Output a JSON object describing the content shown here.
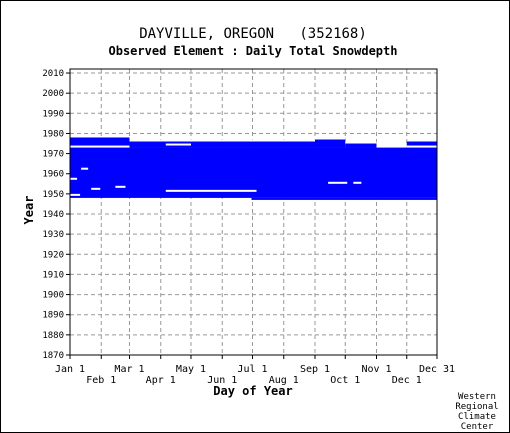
{
  "chart_data": {
    "type": "heatmap",
    "title": "DAYVILLE, OREGON   (352168)",
    "subtitle": "Observed Element : Daily Total Snowdepth",
    "xlabel": "Day of Year",
    "ylabel": "Year",
    "x_range": [
      1,
      365
    ],
    "ylim": [
      1870,
      2012
    ],
    "y_ticks": [
      2010,
      2000,
      1990,
      1980,
      1970,
      1960,
      1950,
      1940,
      1930,
      1920,
      1910,
      1900,
      1890,
      1880,
      1870
    ],
    "x_ticks_upper": [
      {
        "label": "Jan 1",
        "day": 1
      },
      {
        "label": "Mar 1",
        "day": 60
      },
      {
        "label": "May 1",
        "day": 121
      },
      {
        "label": "Jul 1",
        "day": 182
      },
      {
        "label": "Sep 1",
        "day": 244
      },
      {
        "label": "Nov 1",
        "day": 305
      },
      {
        "label": "Dec 31",
        "day": 365
      }
    ],
    "x_ticks_lower": [
      {
        "label": "Feb 1",
        "day": 32
      },
      {
        "label": "Apr 1",
        "day": 91
      },
      {
        "label": "Jun 1",
        "day": 152
      },
      {
        "label": "Aug 1",
        "day": 213
      },
      {
        "label": "Oct 1",
        "day": 274
      },
      {
        "label": "Dec 1",
        "day": 335
      }
    ],
    "data_color": "#0000ff",
    "grid": true,
    "data_blocks": [
      {
        "day_start": 1,
        "day_end": 365,
        "year_start": 1948,
        "year_end": 1973
      },
      {
        "day_start": 1,
        "day_end": 59,
        "year_start": 1973,
        "year_end": 1978
      },
      {
        "day_start": 60,
        "day_end": 243,
        "year_start": 1973,
        "year_end": 1976
      },
      {
        "day_start": 244,
        "day_end": 273,
        "year_start": 1973,
        "year_end": 1978
      },
      {
        "day_start": 274,
        "day_end": 304,
        "year_start": 1973,
        "year_end": 1976
      },
      {
        "day_start": 335,
        "day_end": 365,
        "year_start": 1973,
        "year_end": 1976
      },
      {
        "day_start": 181,
        "day_end": 365,
        "year_start": 1947,
        "year_end": 1948
      }
    ],
    "data_gaps": [
      {
        "day_start": 1,
        "day_end": 59,
        "year": 1973
      },
      {
        "day_start": 60,
        "day_end": 243,
        "year": 1976
      },
      {
        "day_start": 244,
        "day_end": 273,
        "year": 1977
      },
      {
        "day_start": 274,
        "day_end": 304,
        "year": 1975
      },
      {
        "day_start": 305,
        "day_end": 334,
        "year": 1973
      },
      {
        "day_start": 335,
        "day_end": 365,
        "year": 1973
      },
      {
        "day_start": 96,
        "day_end": 120,
        "year": 1974
      },
      {
        "day_start": 96,
        "day_end": 185,
        "year": 1951
      },
      {
        "day_start": 1,
        "day_end": 7,
        "year": 1957
      },
      {
        "day_start": 12,
        "day_end": 18,
        "year": 1962
      },
      {
        "day_start": 22,
        "day_end": 30,
        "year": 1952
      },
      {
        "day_start": 1,
        "day_end": 10,
        "year": 1949
      },
      {
        "day_start": 46,
        "day_end": 55,
        "year": 1953
      },
      {
        "day_start": 257,
        "day_end": 275,
        "year": 1955
      },
      {
        "day_start": 282,
        "day_end": 289,
        "year": 1955
      }
    ]
  },
  "credit": [
    "Western",
    "Regional",
    "Climate",
    "Center"
  ]
}
